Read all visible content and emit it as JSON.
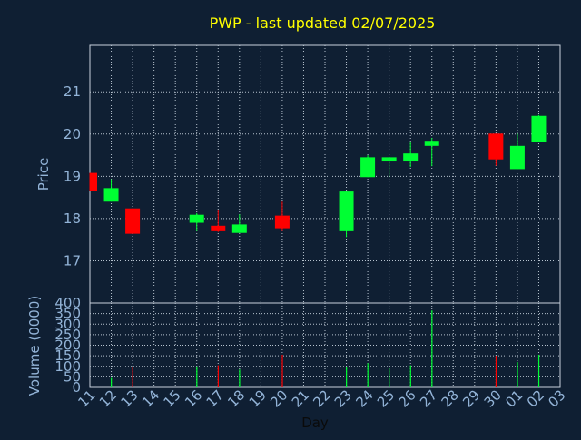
{
  "chart_data": [
    {
      "type": "candlestick",
      "title": "PWP - last updated 02/07/2025",
      "ylabel": "Price",
      "xlabel": "",
      "ylim": [
        16,
        22.1
      ],
      "yticks": [
        17,
        18,
        19,
        20,
        21
      ],
      "grid": true,
      "colors": {
        "up": "#00ff33",
        "down": "#ff0000",
        "title": "#ffff00",
        "axis_text": "#93b4d8",
        "background": "#0f1f33"
      },
      "candles": [
        {
          "day": "11",
          "open": 19.08,
          "high": 19.08,
          "low": 18.66,
          "close": 18.66
        },
        {
          "day": "12",
          "open": 18.4,
          "high": 18.93,
          "low": 18.4,
          "close": 18.72
        },
        {
          "day": "13",
          "open": 18.24,
          "high": 18.24,
          "low": 17.64,
          "close": 17.64
        },
        {
          "day": "16",
          "open": 17.9,
          "high": 18.13,
          "low": 17.7,
          "close": 18.09
        },
        {
          "day": "17",
          "open": 17.83,
          "high": 18.2,
          "low": 17.68,
          "close": 17.7
        },
        {
          "day": "18",
          "open": 17.66,
          "high": 18.1,
          "low": 17.66,
          "close": 17.86
        },
        {
          "day": "20",
          "open": 18.07,
          "high": 18.4,
          "low": 17.7,
          "close": 17.77
        },
        {
          "day": "23",
          "open": 17.7,
          "high": 18.66,
          "low": 17.56,
          "close": 18.64
        },
        {
          "day": "24",
          "open": 18.98,
          "high": 19.5,
          "low": 18.98,
          "close": 19.45
        },
        {
          "day": "25",
          "open": 19.35,
          "high": 19.45,
          "low": 18.98,
          "close": 19.45
        },
        {
          "day": "26",
          "open": 19.35,
          "high": 19.82,
          "low": 19.22,
          "close": 19.54
        },
        {
          "day": "27",
          "open": 19.72,
          "high": 19.91,
          "low": 19.24,
          "close": 19.84
        },
        {
          "day": "30",
          "open": 20.01,
          "high": 20.01,
          "low": 19.25,
          "close": 19.4
        },
        {
          "day": "01",
          "open": 19.17,
          "high": 20.01,
          "low": 19.17,
          "close": 19.72
        },
        {
          "day": "02",
          "open": 19.82,
          "high": 20.45,
          "low": 19.82,
          "close": 20.43
        }
      ]
    },
    {
      "type": "bar",
      "ylabel": "Volume (0000)",
      "xlabel": "Day",
      "ylim": [
        0,
        400
      ],
      "yticks": [
        0,
        50,
        100,
        150,
        200,
        250,
        300,
        350,
        400
      ],
      "grid": true,
      "categories": [
        "11",
        "12",
        "13",
        "14",
        "15",
        "16",
        "17",
        "18",
        "19",
        "20",
        "21",
        "22",
        "23",
        "24",
        "25",
        "26",
        "27",
        "28",
        "29",
        "30",
        "01",
        "02",
        "03"
      ],
      "bars": [
        {
          "day": "12",
          "value": 45,
          "color": "#00ff33"
        },
        {
          "day": "13",
          "value": 95,
          "color": "#ff0000"
        },
        {
          "day": "16",
          "value": 100,
          "color": "#00ff33"
        },
        {
          "day": "17",
          "value": 105,
          "color": "#ff0000"
        },
        {
          "day": "18",
          "value": 85,
          "color": "#00ff33"
        },
        {
          "day": "20",
          "value": 155,
          "color": "#ff0000"
        },
        {
          "day": "23",
          "value": 95,
          "color": "#00ff33"
        },
        {
          "day": "24",
          "value": 115,
          "color": "#00ff33"
        },
        {
          "day": "25",
          "value": 90,
          "color": "#00ff33"
        },
        {
          "day": "26",
          "value": 105,
          "color": "#00ff33"
        },
        {
          "day": "27",
          "value": 365,
          "color": "#00ff33"
        },
        {
          "day": "30",
          "value": 150,
          "color": "#ff0000"
        },
        {
          "day": "01",
          "value": 120,
          "color": "#00ff33"
        },
        {
          "day": "02",
          "value": 155,
          "color": "#00ff33"
        }
      ]
    }
  ]
}
